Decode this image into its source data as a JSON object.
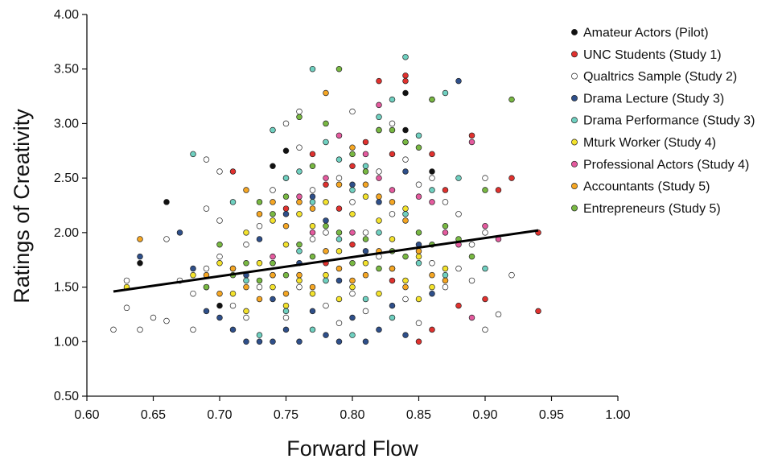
{
  "chart_data": {
    "type": "scatter",
    "title": "",
    "xlabel": "Forward Flow",
    "ylabel": "Ratings of Creativity",
    "xlim": [
      0.6,
      1.0
    ],
    "ylim": [
      0.5,
      4.0
    ],
    "x_ticks": [
      "0.60",
      "0.65",
      "0.70",
      "0.75",
      "0.80",
      "0.85",
      "0.90",
      "0.95",
      "1.00"
    ],
    "y_ticks": [
      "0.50",
      "1.00",
      "1.50",
      "2.00",
      "2.50",
      "3.00",
      "3.50",
      "4.00"
    ],
    "x_tick_values": [
      0.6,
      0.65,
      0.7,
      0.75,
      0.8,
      0.85,
      0.9,
      0.95,
      1.0
    ],
    "y_tick_values": [
      0.5,
      1.0,
      1.5,
      2.0,
      2.5,
      3.0,
      3.5,
      4.0
    ],
    "grid": false,
    "legend_position": "top-right",
    "trend_line": {
      "x": [
        0.62,
        0.94
      ],
      "y": [
        1.46,
        2.02
      ],
      "color": "#000000"
    },
    "series": [
      {
        "name": "Amateur Actors (Pilot)",
        "color": "#111111",
        "points": [
          [
            0.64,
            1.72
          ],
          [
            0.66,
            2.28
          ],
          [
            0.7,
            1.33
          ],
          [
            0.74,
            2.61
          ],
          [
            0.75,
            2.75
          ],
          [
            0.82,
            2.94
          ],
          [
            0.84,
            3.28
          ],
          [
            0.84,
            2.94
          ],
          [
            0.86,
            2.56
          ]
        ]
      },
      {
        "name": "UNC Students (Study 1)",
        "color": "#e0312e",
        "points": [
          [
            0.71,
            2.56
          ],
          [
            0.75,
            2.22
          ],
          [
            0.77,
            2.72
          ],
          [
            0.78,
            2.44
          ],
          [
            0.79,
            2.22
          ],
          [
            0.8,
            2.61
          ],
          [
            0.81,
            2.83
          ],
          [
            0.82,
            3.39
          ],
          [
            0.83,
            2.72
          ],
          [
            0.84,
            3.44
          ],
          [
            0.84,
            3.39
          ],
          [
            0.85,
            1.0
          ],
          [
            0.86,
            1.11
          ],
          [
            0.86,
            2.72
          ],
          [
            0.87,
            2.39
          ],
          [
            0.88,
            1.33
          ],
          [
            0.89,
            2.89
          ],
          [
            0.9,
            1.39
          ],
          [
            0.91,
            2.39
          ],
          [
            0.92,
            2.5
          ],
          [
            0.94,
            1.28
          ],
          [
            0.94,
            2.0
          ],
          [
            0.78,
            1.72
          ],
          [
            0.83,
            1.56
          ],
          [
            0.8,
            1.89
          ]
        ]
      },
      {
        "name": "Qualtrics Sample (Study 2)",
        "color": "#ffffff",
        "points": [
          [
            0.62,
            1.11
          ],
          [
            0.63,
            1.56
          ],
          [
            0.63,
            1.31
          ],
          [
            0.64,
            1.11
          ],
          [
            0.65,
            1.22
          ],
          [
            0.66,
            1.94
          ],
          [
            0.66,
            1.19
          ],
          [
            0.67,
            1.56
          ],
          [
            0.68,
            1.44
          ],
          [
            0.68,
            1.11
          ],
          [
            0.69,
            2.67
          ],
          [
            0.69,
            2.22
          ],
          [
            0.69,
            1.67
          ],
          [
            0.7,
            2.56
          ],
          [
            0.7,
            2.11
          ],
          [
            0.7,
            1.78
          ],
          [
            0.71,
            1.67
          ],
          [
            0.71,
            1.33
          ],
          [
            0.72,
            1.89
          ],
          [
            0.72,
            1.22
          ],
          [
            0.73,
            2.06
          ],
          [
            0.73,
            1.5
          ],
          [
            0.74,
            2.39
          ],
          [
            0.74,
            1.72
          ],
          [
            0.75,
            3.0
          ],
          [
            0.75,
            2.5
          ],
          [
            0.75,
            1.22
          ],
          [
            0.76,
            3.11
          ],
          [
            0.76,
            2.78
          ],
          [
            0.76,
            1.5
          ],
          [
            0.77,
            2.39
          ],
          [
            0.77,
            1.94
          ],
          [
            0.78,
            2.0
          ],
          [
            0.78,
            1.33
          ],
          [
            0.79,
            2.5
          ],
          [
            0.79,
            1.17
          ],
          [
            0.8,
            3.11
          ],
          [
            0.8,
            2.28
          ],
          [
            0.8,
            1.44
          ],
          [
            0.81,
            2.0
          ],
          [
            0.81,
            1.28
          ],
          [
            0.82,
            2.56
          ],
          [
            0.82,
            1.78
          ],
          [
            0.83,
            3.0
          ],
          [
            0.83,
            2.17
          ],
          [
            0.84,
            2.67
          ],
          [
            0.84,
            1.39
          ],
          [
            0.85,
            2.44
          ],
          [
            0.85,
            1.17
          ],
          [
            0.86,
            2.5
          ],
          [
            0.86,
            1.72
          ],
          [
            0.87,
            2.28
          ],
          [
            0.87,
            1.5
          ],
          [
            0.88,
            2.17
          ],
          [
            0.88,
            1.67
          ],
          [
            0.89,
            1.89
          ],
          [
            0.89,
            1.56
          ],
          [
            0.9,
            2.5
          ],
          [
            0.9,
            2.0
          ],
          [
            0.9,
            1.11
          ],
          [
            0.91,
            1.25
          ],
          [
            0.92,
            1.61
          ]
        ]
      },
      {
        "name": "Drama Lecture (Study 3)",
        "color": "#2e4f8a",
        "points": [
          [
            0.64,
            1.78
          ],
          [
            0.67,
            2.0
          ],
          [
            0.68,
            1.67
          ],
          [
            0.69,
            1.28
          ],
          [
            0.7,
            1.22
          ],
          [
            0.71,
            1.11
          ],
          [
            0.72,
            1.0
          ],
          [
            0.72,
            1.61
          ],
          [
            0.73,
            1.0
          ],
          [
            0.73,
            1.94
          ],
          [
            0.74,
            1.0
          ],
          [
            0.74,
            1.39
          ],
          [
            0.75,
            1.11
          ],
          [
            0.75,
            2.17
          ],
          [
            0.76,
            1.0
          ],
          [
            0.76,
            1.72
          ],
          [
            0.77,
            1.28
          ],
          [
            0.77,
            2.33
          ],
          [
            0.78,
            1.06
          ],
          [
            0.78,
            2.11
          ],
          [
            0.79,
            1.0
          ],
          [
            0.79,
            1.56
          ],
          [
            0.8,
            1.22
          ],
          [
            0.8,
            2.44
          ],
          [
            0.81,
            1.0
          ],
          [
            0.81,
            1.83
          ],
          [
            0.82,
            1.11
          ],
          [
            0.82,
            2.28
          ],
          [
            0.83,
            1.33
          ],
          [
            0.84,
            2.56
          ],
          [
            0.84,
            1.06
          ],
          [
            0.85,
            1.89
          ],
          [
            0.86,
            1.44
          ],
          [
            0.88,
            3.39
          ]
        ]
      },
      {
        "name": "Drama Performance (Study 3)",
        "color": "#6fd0c0",
        "points": [
          [
            0.68,
            2.72
          ],
          [
            0.71,
            2.28
          ],
          [
            0.72,
            1.56
          ],
          [
            0.73,
            1.06
          ],
          [
            0.74,
            2.94
          ],
          [
            0.74,
            1.61
          ],
          [
            0.75,
            2.5
          ],
          [
            0.75,
            1.28
          ],
          [
            0.76,
            2.56
          ],
          [
            0.76,
            1.83
          ],
          [
            0.77,
            3.5
          ],
          [
            0.77,
            2.28
          ],
          [
            0.77,
            1.11
          ],
          [
            0.78,
            2.83
          ],
          [
            0.78,
            1.56
          ],
          [
            0.79,
            2.67
          ],
          [
            0.79,
            1.94
          ],
          [
            0.8,
            2.39
          ],
          [
            0.8,
            1.06
          ],
          [
            0.81,
            2.61
          ],
          [
            0.81,
            1.39
          ],
          [
            0.82,
            3.06
          ],
          [
            0.82,
            2.0
          ],
          [
            0.83,
            3.22
          ],
          [
            0.83,
            1.22
          ],
          [
            0.84,
            3.61
          ],
          [
            0.84,
            2.17
          ],
          [
            0.85,
            2.89
          ],
          [
            0.85,
            1.72
          ],
          [
            0.86,
            3.22
          ],
          [
            0.86,
            2.39
          ],
          [
            0.87,
            3.28
          ],
          [
            0.87,
            1.61
          ],
          [
            0.88,
            2.5
          ],
          [
            0.9,
            1.67
          ]
        ]
      },
      {
        "name": "Mturk Worker (Study 4)",
        "color": "#f3e22c",
        "points": [
          [
            0.63,
            1.5
          ],
          [
            0.68,
            1.61
          ],
          [
            0.69,
            1.5
          ],
          [
            0.7,
            1.72
          ],
          [
            0.71,
            1.44
          ],
          [
            0.72,
            1.28
          ],
          [
            0.72,
            2.0
          ],
          [
            0.73,
            1.72
          ],
          [
            0.74,
            1.5
          ],
          [
            0.74,
            2.11
          ],
          [
            0.75,
            1.33
          ],
          [
            0.75,
            1.89
          ],
          [
            0.76,
            1.56
          ],
          [
            0.76,
            2.17
          ],
          [
            0.77,
            1.44
          ],
          [
            0.77,
            2.06
          ],
          [
            0.78,
            1.61
          ],
          [
            0.78,
            2.28
          ],
          [
            0.79,
            1.39
          ],
          [
            0.79,
            1.83
          ],
          [
            0.8,
            1.5
          ],
          [
            0.8,
            2.17
          ],
          [
            0.81,
            1.72
          ],
          [
            0.81,
            2.33
          ],
          [
            0.82,
            1.44
          ],
          [
            0.82,
            2.11
          ],
          [
            0.83,
            1.67
          ],
          [
            0.83,
            1.94
          ],
          [
            0.84,
            1.56
          ],
          [
            0.84,
            2.22
          ],
          [
            0.85,
            1.78
          ],
          [
            0.85,
            1.39
          ],
          [
            0.86,
            1.5
          ],
          [
            0.87,
            1.67
          ]
        ]
      },
      {
        "name": "Professional Actors (Study 4)",
        "color": "#e45a9e",
        "points": [
          [
            0.74,
            1.78
          ],
          [
            0.76,
            2.33
          ],
          [
            0.77,
            2.0
          ],
          [
            0.78,
            2.5
          ],
          [
            0.79,
            2.89
          ],
          [
            0.8,
            2.0
          ],
          [
            0.81,
            2.72
          ],
          [
            0.82,
            2.5
          ],
          [
            0.82,
            3.17
          ],
          [
            0.83,
            2.39
          ],
          [
            0.84,
            2.83
          ],
          [
            0.85,
            2.33
          ],
          [
            0.86,
            2.28
          ],
          [
            0.87,
            2.0
          ],
          [
            0.88,
            1.89
          ],
          [
            0.89,
            1.22
          ],
          [
            0.89,
            2.83
          ],
          [
            0.9,
            2.06
          ],
          [
            0.91,
            1.94
          ]
        ]
      },
      {
        "name": "Accountants (Study 5)",
        "color": "#f5a623",
        "points": [
          [
            0.64,
            1.94
          ],
          [
            0.69,
            1.61
          ],
          [
            0.7,
            1.44
          ],
          [
            0.71,
            1.67
          ],
          [
            0.72,
            2.39
          ],
          [
            0.72,
            1.5
          ],
          [
            0.73,
            1.39
          ],
          [
            0.73,
            2.17
          ],
          [
            0.74,
            1.61
          ],
          [
            0.74,
            2.28
          ],
          [
            0.75,
            1.44
          ],
          [
            0.75,
            2.06
          ],
          [
            0.76,
            1.61
          ],
          [
            0.76,
            2.28
          ],
          [
            0.77,
            1.5
          ],
          [
            0.77,
            2.22
          ],
          [
            0.78,
            3.28
          ],
          [
            0.78,
            1.83
          ],
          [
            0.79,
            1.67
          ],
          [
            0.79,
            2.44
          ],
          [
            0.8,
            1.56
          ],
          [
            0.8,
            2.78
          ],
          [
            0.81,
            1.61
          ],
          [
            0.81,
            2.44
          ],
          [
            0.82,
            1.83
          ],
          [
            0.82,
            2.33
          ],
          [
            0.83,
            1.67
          ],
          [
            0.83,
            2.28
          ],
          [
            0.84,
            1.5
          ],
          [
            0.84,
            2.11
          ],
          [
            0.85,
            1.83
          ],
          [
            0.86,
            1.61
          ],
          [
            0.87,
            1.56
          ]
        ]
      },
      {
        "name": "Entrepreneurs (Study 5)",
        "color": "#78b842",
        "points": [
          [
            0.69,
            1.5
          ],
          [
            0.7,
            1.89
          ],
          [
            0.71,
            1.61
          ],
          [
            0.72,
            1.72
          ],
          [
            0.73,
            2.28
          ],
          [
            0.73,
            1.56
          ],
          [
            0.74,
            2.17
          ],
          [
            0.74,
            1.72
          ],
          [
            0.75,
            2.33
          ],
          [
            0.75,
            1.61
          ],
          [
            0.76,
            3.06
          ],
          [
            0.76,
            1.89
          ],
          [
            0.77,
            2.61
          ],
          [
            0.77,
            1.78
          ],
          [
            0.78,
            3.0
          ],
          [
            0.78,
            2.06
          ],
          [
            0.79,
            3.5
          ],
          [
            0.79,
            2.0
          ],
          [
            0.8,
            2.72
          ],
          [
            0.8,
            1.72
          ],
          [
            0.81,
            2.56
          ],
          [
            0.81,
            1.94
          ],
          [
            0.82,
            2.94
          ],
          [
            0.82,
            1.67
          ],
          [
            0.83,
            2.94
          ],
          [
            0.83,
            1.83
          ],
          [
            0.84,
            2.83
          ],
          [
            0.84,
            1.78
          ],
          [
            0.85,
            2.78
          ],
          [
            0.85,
            2.0
          ],
          [
            0.86,
            3.22
          ],
          [
            0.86,
            1.89
          ],
          [
            0.87,
            2.06
          ],
          [
            0.88,
            1.94
          ],
          [
            0.89,
            1.78
          ],
          [
            0.9,
            2.39
          ],
          [
            0.92,
            3.22
          ]
        ]
      }
    ]
  }
}
